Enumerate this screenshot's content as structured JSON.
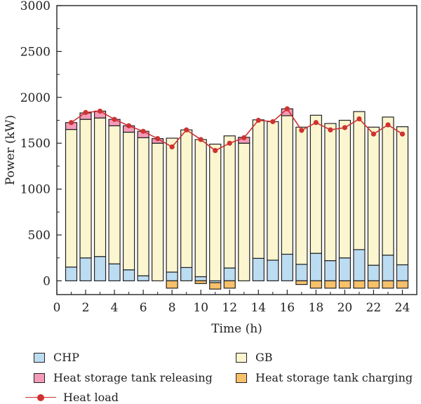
{
  "chart_data": {
    "type": "bar",
    "stacked": true,
    "title": "",
    "xlabel": "Time (h)",
    "ylabel": "Power (kW)",
    "xlim": [
      0,
      25
    ],
    "ylim": [
      -150,
      3000
    ],
    "x_ticks": [
      0,
      2,
      4,
      6,
      8,
      10,
      12,
      14,
      16,
      18,
      20,
      22,
      24
    ],
    "y_ticks": [
      0,
      500,
      1000,
      1500,
      2000,
      2500,
      3000
    ],
    "grid": false,
    "legend_position": "bottom",
    "categories": [
      1,
      2,
      3,
      4,
      5,
      6,
      7,
      8,
      9,
      10,
      11,
      12,
      13,
      14,
      15,
      16,
      17,
      18,
      19,
      20,
      21,
      22,
      23,
      24
    ],
    "series": [
      {
        "name": "CHP",
        "kind": "bar",
        "color": "#bcdcf2",
        "values": [
          150,
          250,
          265,
          185,
          120,
          55,
          0,
          95,
          145,
          45,
          -20,
          140,
          0,
          245,
          225,
          290,
          180,
          300,
          220,
          250,
          340,
          170,
          280,
          175
        ]
      },
      {
        "name": "GB",
        "kind": "bar",
        "color": "#fbf6cf",
        "values": [
          1500,
          1510,
          1510,
          1505,
          1500,
          1505,
          1500,
          1460,
          1500,
          1495,
          1490,
          1440,
          1500,
          1510,
          1510,
          1510,
          1495,
          1505,
          1495,
          1500,
          1505,
          1505,
          1505,
          1505
        ]
      },
      {
        "name": "Heat storage tank releasing",
        "kind": "bar",
        "color": "#f39bb8",
        "values": [
          75,
          70,
          75,
          70,
          70,
          70,
          50,
          0,
          0,
          0,
          0,
          0,
          65,
          0,
          0,
          75,
          0,
          0,
          0,
          0,
          0,
          0,
          0,
          0
        ]
      },
      {
        "name": "Heat storage tank charging",
        "kind": "bar",
        "color": "#f7c06a",
        "values": [
          0,
          0,
          0,
          0,
          0,
          0,
          0,
          -80,
          0,
          -30,
          -70,
          -80,
          0,
          0,
          0,
          0,
          -40,
          -80,
          -80,
          -80,
          -80,
          -80,
          -80,
          -80
        ]
      },
      {
        "name": "Heat load",
        "kind": "line",
        "color": "#d03131",
        "values": [
          1725,
          1835,
          1850,
          1760,
          1690,
          1630,
          1550,
          1460,
          1645,
          1540,
          1420,
          1500,
          1560,
          1750,
          1735,
          1875,
          1640,
          1725,
          1645,
          1670,
          1765,
          1600,
          1700,
          1600
        ]
      }
    ]
  }
}
